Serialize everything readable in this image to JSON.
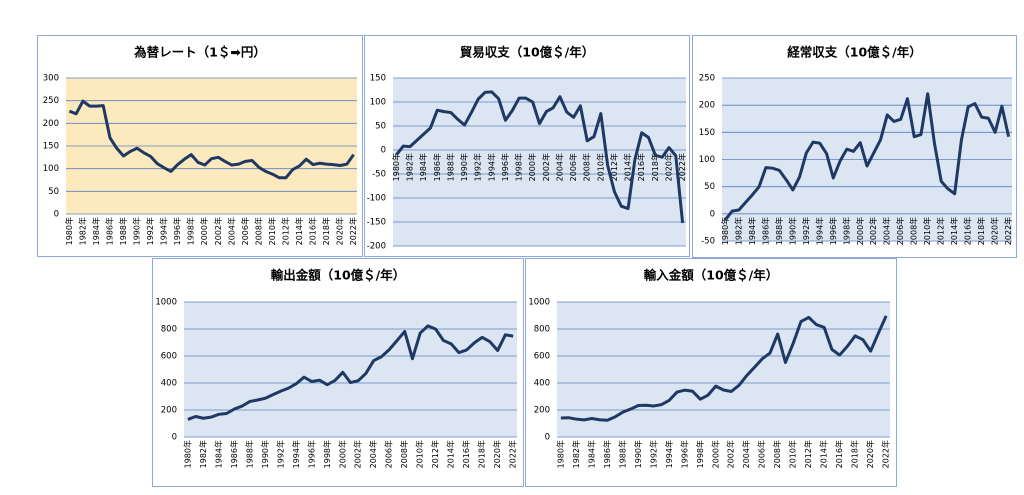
{
  "chart_data": [
    {
      "type": "line",
      "title": "為替レート（1＄➡円）",
      "color": "#1f3864",
      "plot_color": "#fce9bd",
      "categories": [
        "1980年",
        null,
        "1982年",
        null,
        "1984年",
        null,
        "1986年",
        null,
        "1988年",
        null,
        "1990年",
        null,
        "1992年",
        null,
        "1994年",
        null,
        "1996年",
        null,
        "1998年",
        null,
        "2000年",
        null,
        "2002年",
        null,
        "2004年",
        null,
        "2006年",
        null,
        "2008年",
        null,
        "2010年",
        null,
        "2012年",
        null,
        "2014年",
        null,
        "2016年",
        null,
        "2018年",
        null,
        "2020年",
        null,
        "2022年"
      ],
      "values": [
        227,
        221,
        249,
        238,
        238,
        239,
        168,
        145,
        128,
        138,
        145,
        135,
        127,
        111,
        102,
        94,
        109,
        121,
        131,
        114,
        108,
        122,
        125,
        116,
        108,
        110,
        116,
        118,
        103,
        94,
        88,
        80,
        80,
        98,
        106,
        121,
        109,
        112,
        110,
        109,
        107,
        110,
        131
      ],
      "ylim": [
        0,
        300
      ],
      "yticks": [
        0,
        50,
        100,
        150,
        200,
        250,
        300
      ],
      "grid": true
    },
    {
      "type": "line",
      "title": "貿易収支（10億＄/年）",
      "color": "#1f3864",
      "plot_color": "#dce6f2",
      "categories": [
        "1980年",
        null,
        "1982年",
        null,
        "1984年",
        null,
        "1986年",
        null,
        "1988年",
        null,
        "1990年",
        null,
        "1992年",
        null,
        "1994年",
        null,
        "1996年",
        null,
        "1998年",
        null,
        "2000年",
        null,
        "2002年",
        null,
        "2004年",
        null,
        "2006年",
        null,
        "2008年",
        null,
        "2010年",
        null,
        "2012年",
        null,
        "2014年",
        null,
        "2016年",
        null,
        "2018年",
        null,
        "2020年",
        null,
        "2022年"
      ],
      "values": [
        -10,
        8,
        7,
        20,
        33,
        46,
        83,
        80,
        78,
        64,
        52,
        78,
        106,
        120,
        121,
        107,
        62,
        82,
        108,
        108,
        100,
        55,
        80,
        88,
        111,
        79,
        68,
        92,
        19,
        28,
        76,
        -32,
        -87,
        -117,
        -122,
        -20,
        36,
        26,
        -11,
        -15,
        5,
        -12,
        -152
      ],
      "ylim": [
        -200,
        150
      ],
      "yticks": [
        -200,
        -150,
        -100,
        -50,
        0,
        50,
        100,
        150
      ],
      "grid": true
    },
    {
      "type": "line",
      "title": "経常収支（10億＄/年）",
      "color": "#1f3864",
      "plot_color": "#dce6f2",
      "categories": [
        "1980年",
        null,
        "1982年",
        null,
        "1984年",
        null,
        "1986年",
        null,
        "1988年",
        null,
        "1990年",
        null,
        "1992年",
        null,
        "1994年",
        null,
        "1996年",
        null,
        "1998年",
        null,
        "2000年",
        null,
        "2002年",
        null,
        "2004年",
        null,
        "2006年",
        null,
        "2008年",
        null,
        "2010年",
        null,
        "2012年",
        null,
        "2014年",
        null,
        "2016年",
        null,
        "2018年",
        null,
        "2020年",
        null,
        "2022年"
      ],
      "values": [
        -11,
        5,
        7,
        21,
        35,
        50,
        85,
        84,
        80,
        63,
        44,
        68,
        112,
        132,
        130,
        111,
        66,
        97,
        119,
        115,
        131,
        88,
        112,
        136,
        182,
        170,
        174,
        212,
        142,
        146,
        221,
        130,
        60,
        46,
        37,
        136,
        197,
        203,
        178,
        176,
        150,
        198,
        142
      ],
      "ylim": [
        -50,
        250
      ],
      "yticks": [
        -50,
        0,
        50,
        100,
        150,
        200,
        250
      ],
      "grid": true
    },
    {
      "type": "line",
      "title": "輸出金額（10億＄/年）",
      "color": "#1f3864",
      "plot_color": "#dce6f2",
      "categories": [
        "1980年",
        null,
        "1982年",
        null,
        "1984年",
        null,
        "1986年",
        null,
        "1988年",
        null,
        "1990年",
        null,
        "1992年",
        null,
        "1994年",
        null,
        "1996年",
        null,
        "1998年",
        null,
        "2000年",
        null,
        "2002年",
        null,
        "2004年",
        null,
        "2006年",
        null,
        "2008年",
        null,
        "2010年",
        null,
        "2012年",
        null,
        "2014年",
        null,
        "2016年",
        null,
        "2018年",
        null,
        "2020年",
        null,
        "2022年"
      ],
      "values": [
        130,
        152,
        139,
        147,
        168,
        174,
        207,
        229,
        263,
        274,
        287,
        314,
        340,
        362,
        395,
        443,
        411,
        421,
        387,
        419,
        479,
        403,
        417,
        472,
        566,
        595,
        647,
        714,
        782,
        580,
        770,
        823,
        799,
        715,
        690,
        625,
        645,
        698,
        738,
        706,
        641,
        757,
        747
      ],
      "ylim": [
        0,
        1000
      ],
      "yticks": [
        0,
        200,
        400,
        600,
        800,
        1000
      ],
      "grid": true
    },
    {
      "type": "line",
      "title": "輸入金額（10億＄/年）",
      "color": "#1f3864",
      "plot_color": "#dce6f2",
      "categories": [
        "1980年",
        null,
        "1982年",
        null,
        "1984年",
        null,
        "1986年",
        null,
        "1988年",
        null,
        "1990年",
        null,
        "1992年",
        null,
        "1994年",
        null,
        "1996年",
        null,
        "1998年",
        null,
        "2000年",
        null,
        "2002年",
        null,
        "2004年",
        null,
        "2006年",
        null,
        "2008年",
        null,
        "2010年",
        null,
        "2012年",
        null,
        "2014年",
        null,
        "2016年",
        null,
        "2018年",
        null,
        "2020年",
        null,
        "2022年"
      ],
      "values": [
        141,
        143,
        132,
        127,
        137,
        128,
        124,
        149,
        184,
        207,
        233,
        235,
        230,
        240,
        272,
        333,
        347,
        339,
        280,
        310,
        377,
        348,
        337,
        383,
        455,
        516,
        579,
        622,
        763,
        552,
        694,
        855,
        886,
        832,
        812,
        648,
        607,
        672,
        749,
        721,
        636,
        769,
        897
      ],
      "ylim": [
        0,
        1000
      ],
      "yticks": [
        0,
        200,
        400,
        600,
        800,
        1000
      ],
      "grid": true
    }
  ]
}
